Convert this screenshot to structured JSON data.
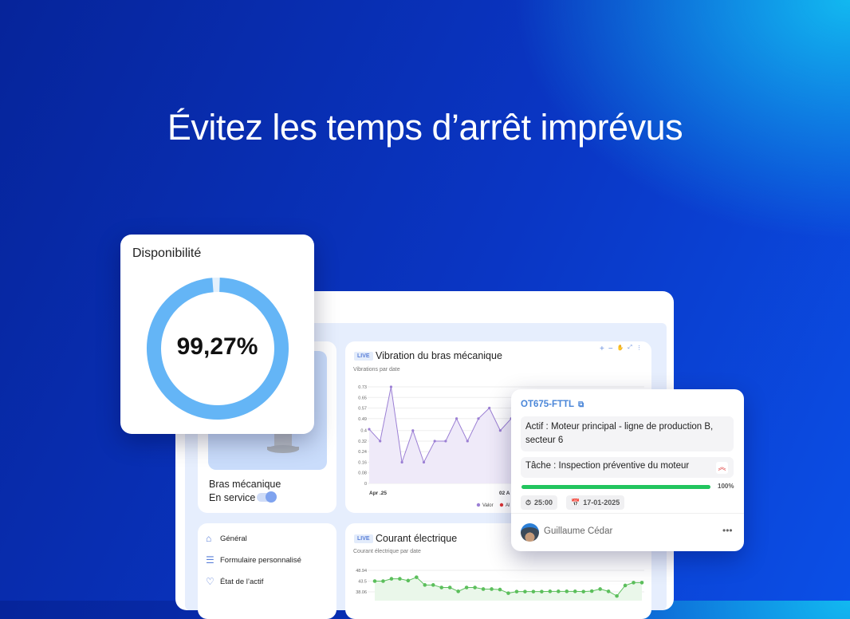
{
  "hero": {
    "title": "Évitez les temps d’arrêt imprévus"
  },
  "asset": {
    "name": "Bras mécanique",
    "status_label": "En service :",
    "in_service": true
  },
  "vibration": {
    "badge": "LIVE",
    "title": "Vibration du bras mécanique",
    "subtitle": "Vibrations par date",
    "legend": [
      "Valor",
      "Al"
    ],
    "toolbar_icons": [
      "zoom-in-icon",
      "zoom-out-icon",
      "pan-icon",
      "reset-icon",
      "more-icon"
    ]
  },
  "current": {
    "badge": "LIVE",
    "title": "Courant électrique",
    "subtitle": "Courant électrique par date"
  },
  "menu": {
    "items": [
      {
        "label": "Général",
        "icon": "home-icon"
      },
      {
        "label": "Formulaire personnalisé",
        "icon": "form-icon"
      },
      {
        "label": "État de l’actif",
        "icon": "health-icon"
      }
    ]
  },
  "availability": {
    "title": "Disponibilité",
    "value_label": "99,27%",
    "value": 99.27,
    "color": "#64b5f6"
  },
  "work_order": {
    "id": "OT675-FTTL",
    "asset_text": "Actif : Moteur principal - ligne de production B, secteur 6",
    "task_text": "Tâche : Inspection préventive du moteur",
    "priority": "high",
    "progress": 100,
    "progress_label": "100%",
    "duration": "25:00",
    "date": "17-01-2025",
    "assignee": "Guillaume Cédar",
    "progress_color": "#22c55e"
  },
  "chart_data": [
    {
      "type": "area",
      "title": "Vibration du bras mécanique",
      "subtitle": "Vibrations par date",
      "x_tick_labels": [
        "Apr .25",
        "02 A"
      ],
      "yticks": [
        0,
        0.08,
        0.16,
        0.24,
        0.32,
        0.4,
        0.49,
        0.57,
        0.65,
        0.73
      ],
      "ylim": [
        0,
        0.73
      ],
      "grid": true,
      "legend": "bottom",
      "series": [
        {
          "name": "Valor",
          "color": "#9b7fd4",
          "values": [
            0.41,
            0.32,
            0.73,
            0.16,
            0.4,
            0.16,
            0.32,
            0.32,
            0.49,
            0.32,
            0.49,
            0.57,
            0.4,
            0.49
          ]
        }
      ]
    },
    {
      "type": "area",
      "title": "Courant électrique",
      "subtitle": "Courant électrique par date",
      "yticks": [
        38.06,
        43.5,
        48.94
      ],
      "grid": true,
      "series": [
        {
          "color": "#5cbf5c",
          "values": [
            43.5,
            43.5,
            44.67,
            44.67,
            43.76,
            45.44,
            41.56,
            41.56,
            40.26,
            40.26,
            38.32,
            40.26,
            40.26,
            39.49,
            39.49,
            39.23,
            37.41,
            38.19,
            38.19,
            38.19,
            38.19,
            38.32,
            38.32,
            38.32,
            38.32,
            38.19,
            38.45,
            39.49,
            38.32,
            35.99,
            41.3,
            42.72,
            42.72
          ]
        }
      ]
    }
  ]
}
